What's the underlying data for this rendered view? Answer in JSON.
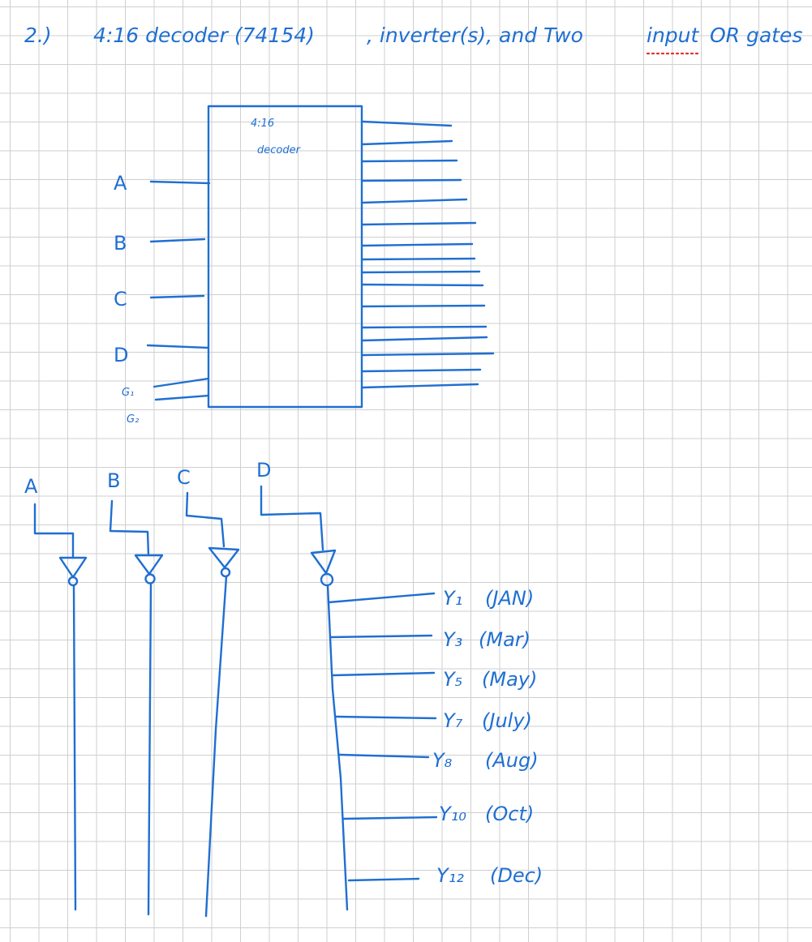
{
  "header": {
    "number": "2.)",
    "title_main": "4:16 decoder (74154)",
    "title_tail": ", inverter(s), and Two",
    "title_underlined": "input",
    "title_end": "OR gates"
  },
  "decoder": {
    "label_line1": "4:16",
    "label_line2": "decoder",
    "inputs": [
      "A",
      "B",
      "C",
      "D",
      "G₁",
      "G₂"
    ]
  },
  "inverters": {
    "labels": [
      "A",
      "B",
      "C",
      "D"
    ]
  },
  "outputs": [
    {
      "name": "Y₁",
      "month": "(JAN)"
    },
    {
      "name": "Y₃",
      "month": "(Mar)"
    },
    {
      "name": "Y₅",
      "month": "(May)"
    },
    {
      "name": "Y₇",
      "month": "(July)"
    },
    {
      "name": "Y₈",
      "month": "(Aug)"
    },
    {
      "name": "Y₁₀",
      "month": "(Oct)"
    },
    {
      "name": "Y₁₂",
      "month": "(Dec)"
    }
  ]
}
